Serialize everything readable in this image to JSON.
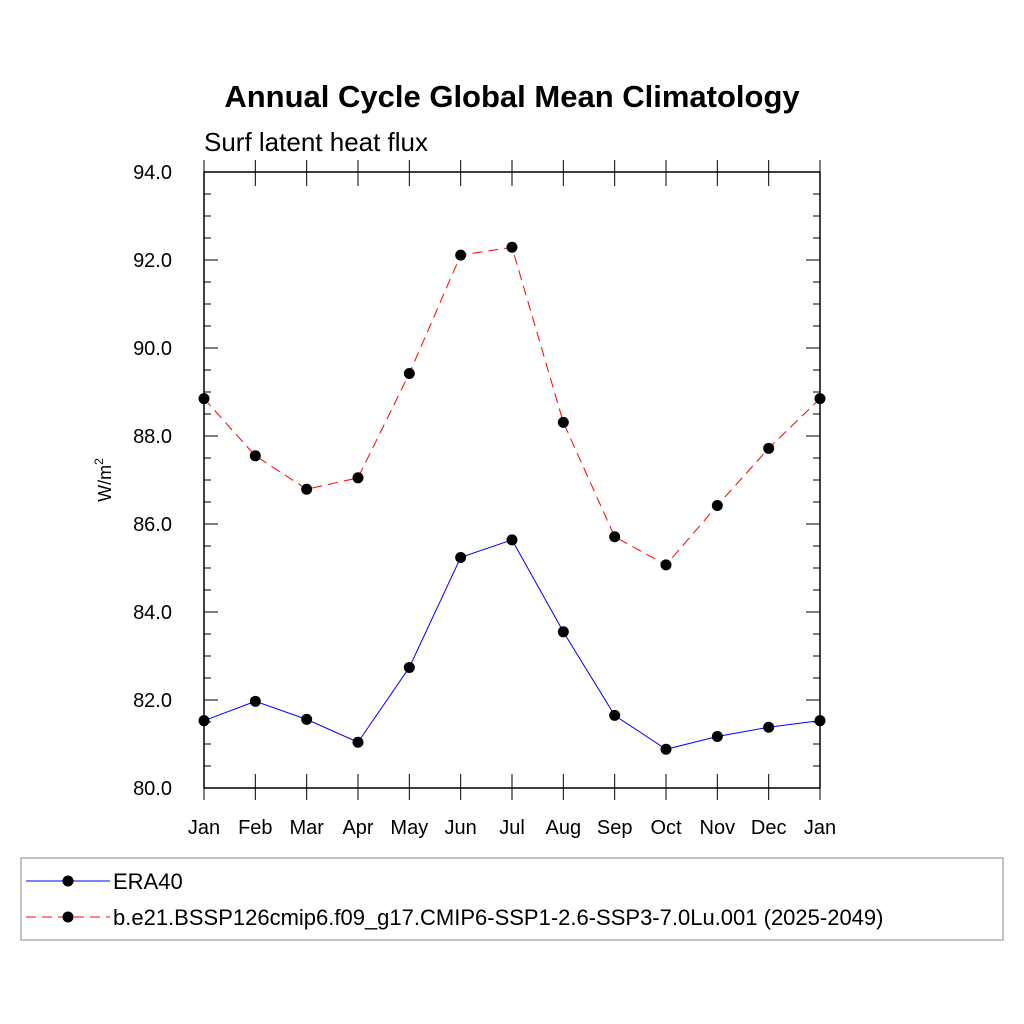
{
  "chart_data": {
    "type": "line",
    "title": "Annual Cycle Global Mean Climatology",
    "subtitle": "Surf latent heat flux",
    "ylabel": "W/m",
    "ylabel_superscript": "2",
    "xlabel": "",
    "categories": [
      "Jan",
      "Feb",
      "Mar",
      "Apr",
      "May",
      "Jun",
      "Jul",
      "Aug",
      "Sep",
      "Oct",
      "Nov",
      "Dec",
      "Jan"
    ],
    "ylim": [
      80.0,
      94.0
    ],
    "yticks": [
      "80.0",
      "82.0",
      "84.0",
      "86.0",
      "88.0",
      "90.0",
      "92.0",
      "94.0"
    ],
    "grid": false,
    "legend_position": "bottom",
    "series": [
      {
        "name": "ERA40",
        "color": "#0000ff",
        "line_style": "solid",
        "marker": "filled-circle",
        "values": [
          81.53,
          81.97,
          81.56,
          81.04,
          82.74,
          85.24,
          85.64,
          83.55,
          81.65,
          80.88,
          81.17,
          81.38,
          81.53
        ]
      },
      {
        "name": "b.e21.BSSP126cmip6.f09_g17.CMIP6-SSP1-2.6-SSP3-7.0Lu.001 (2025-2049)",
        "color": "#ff0000",
        "line_style": "dashed",
        "marker": "filled-circle",
        "values": [
          88.85,
          87.55,
          86.79,
          87.05,
          89.42,
          92.11,
          92.29,
          88.31,
          85.71,
          85.07,
          86.42,
          87.72,
          88.85
        ]
      }
    ]
  }
}
